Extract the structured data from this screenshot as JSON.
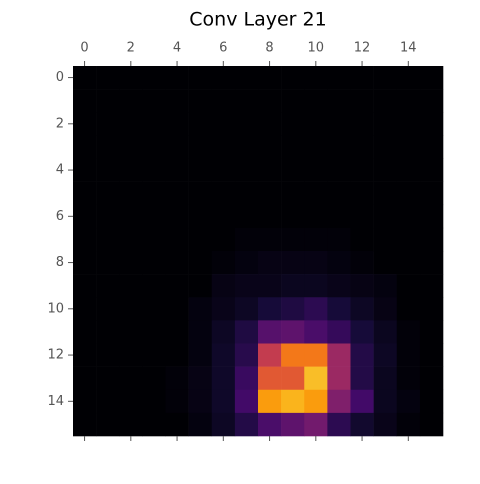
{
  "chart_data": {
    "type": "heatmap",
    "title": "Conv Layer 21",
    "colormap": "inferno",
    "color_range": [
      0,
      1
    ],
    "xlim": [
      -0.5,
      15.5
    ],
    "ylim": [
      -0.5,
      15.5
    ],
    "xticks": [
      0,
      2,
      4,
      6,
      8,
      10,
      12,
      14
    ],
    "yticks": [
      0,
      2,
      4,
      6,
      8,
      10,
      12,
      14
    ],
    "values": [
      [
        0,
        0,
        0,
        0,
        0,
        0,
        0,
        0,
        0,
        0,
        0,
        0,
        0,
        0,
        0,
        0
      ],
      [
        0,
        0,
        0,
        0,
        0,
        0,
        0,
        0,
        0,
        0,
        0,
        0,
        0,
        0,
        0,
        0
      ],
      [
        0,
        0,
        0,
        0,
        0,
        0,
        0,
        0,
        0,
        0,
        0,
        0,
        0,
        0,
        0,
        0
      ],
      [
        0,
        0,
        0,
        0,
        0,
        0,
        0,
        0,
        0,
        0,
        0,
        0,
        0,
        0,
        0,
        0
      ],
      [
        0,
        0,
        0,
        0,
        0,
        0,
        0,
        0,
        0,
        0,
        0,
        0,
        0,
        0,
        0,
        0
      ],
      [
        0,
        0,
        0,
        0,
        0,
        0,
        0,
        0,
        0,
        0,
        0,
        0,
        0,
        0,
        0,
        0
      ],
      [
        0,
        0,
        0,
        0,
        0,
        0,
        0,
        0,
        0,
        0,
        0,
        0,
        0,
        0,
        0,
        0
      ],
      [
        0,
        0,
        0,
        0,
        0,
        0,
        0,
        0.01,
        0.01,
        0.01,
        0.01,
        0.01,
        0,
        0,
        0,
        0
      ],
      [
        0,
        0,
        0,
        0,
        0,
        0,
        0.01,
        0.02,
        0.03,
        0.03,
        0.03,
        0.02,
        0.01,
        0,
        0,
        0
      ],
      [
        0,
        0,
        0,
        0,
        0,
        0,
        0.03,
        0.04,
        0.04,
        0.05,
        0.05,
        0.04,
        0.03,
        0.02,
        0,
        0
      ],
      [
        0,
        0,
        0,
        0,
        0,
        0.02,
        0.04,
        0.06,
        0.1,
        0.12,
        0.15,
        0.1,
        0.06,
        0.03,
        0,
        0
      ],
      [
        0,
        0,
        0,
        0,
        0,
        0.02,
        0.06,
        0.12,
        0.25,
        0.27,
        0.22,
        0.17,
        0.1,
        0.05,
        0.01,
        0
      ],
      [
        0,
        0,
        0,
        0,
        0,
        0.02,
        0.07,
        0.14,
        0.52,
        0.7,
        0.7,
        0.42,
        0.13,
        0.06,
        0.01,
        0
      ],
      [
        0,
        0,
        0,
        0,
        0.01,
        0.03,
        0.07,
        0.18,
        0.62,
        0.62,
        0.85,
        0.42,
        0.13,
        0.05,
        0.01,
        0
      ],
      [
        0,
        0,
        0,
        0,
        0.01,
        0.03,
        0.07,
        0.2,
        0.78,
        0.83,
        0.78,
        0.35,
        0.2,
        0.05,
        0.02,
        0
      ],
      [
        0,
        0,
        0,
        0,
        0,
        0.02,
        0.06,
        0.13,
        0.22,
        0.27,
        0.32,
        0.15,
        0.08,
        0.04,
        0.01,
        0
      ]
    ]
  }
}
